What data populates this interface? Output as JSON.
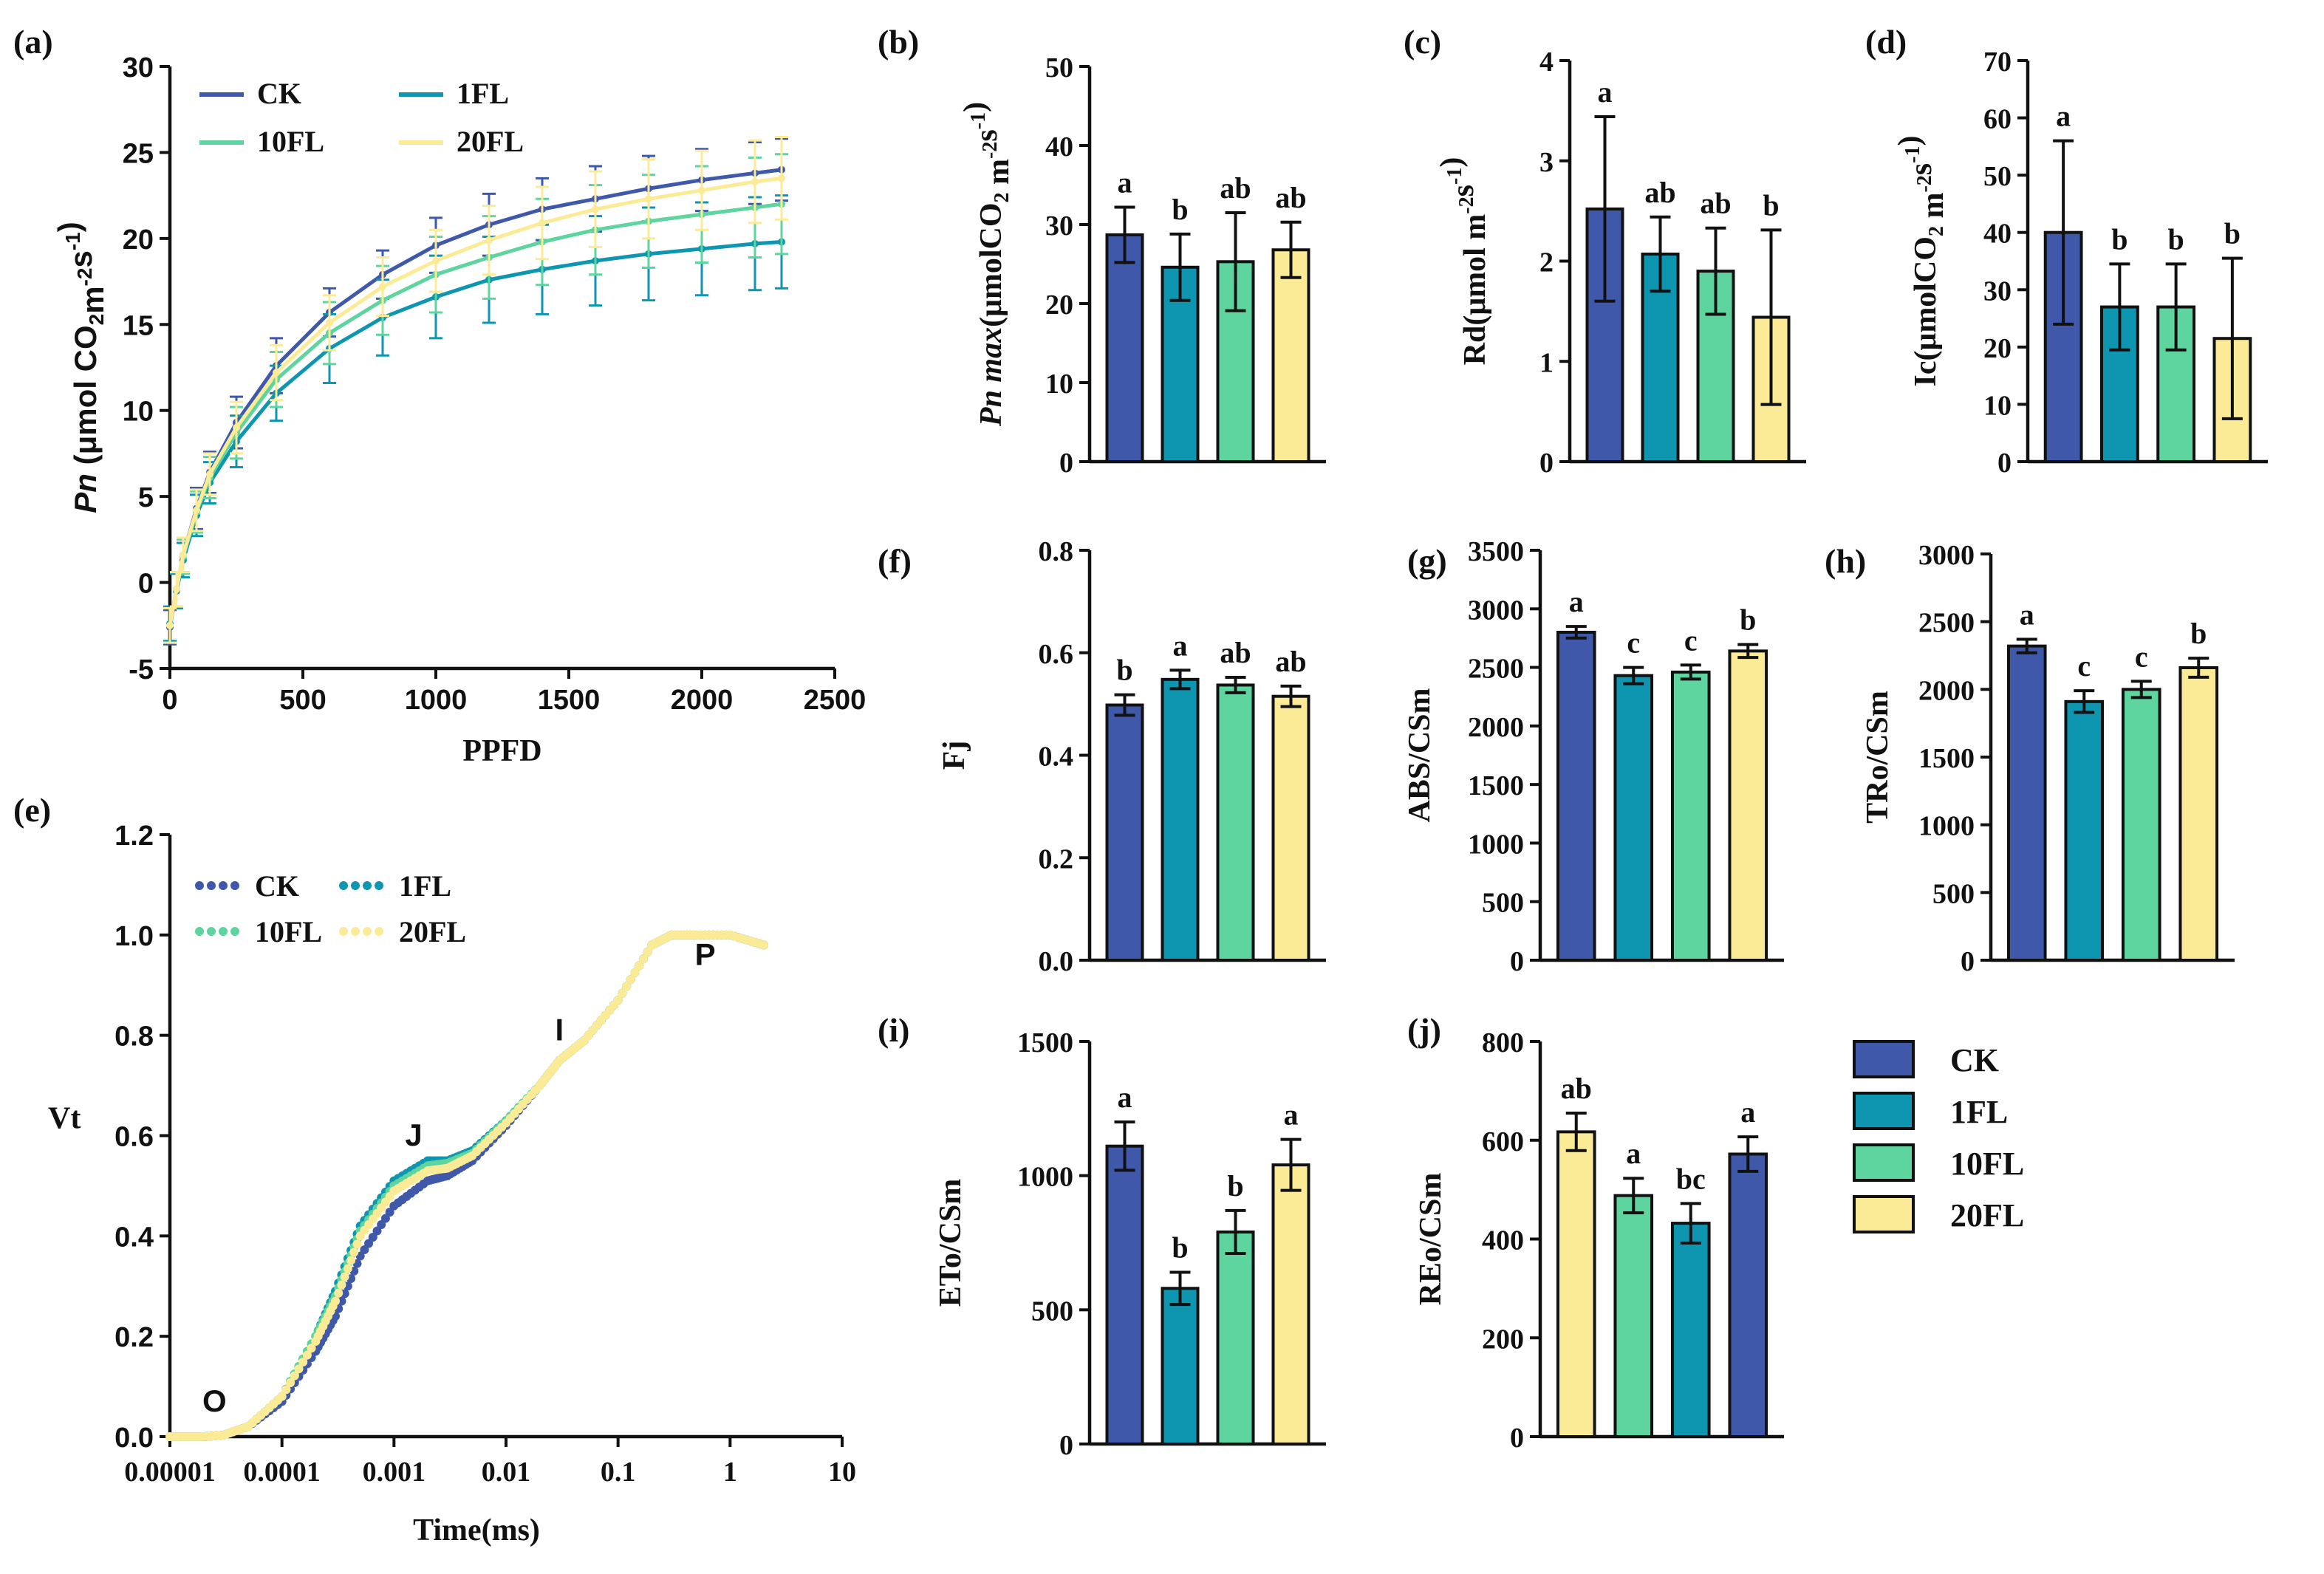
{
  "colors": {
    "CK": "#3F58AA",
    "1FL": "#0E96B0",
    "10FL": "#5ED49E",
    "20FL": "#FCEB96",
    "axis": "#111111"
  },
  "legend": {
    "entries": [
      "CK",
      "1FL",
      "10FL",
      "20FL"
    ]
  },
  "chart_data": [
    {
      "id": "a",
      "panel_label": "(a)",
      "type": "line",
      "xlabel": "PPFD",
      "ylabel_html": "Pn (μmol CO₂m⁻²s⁻¹)",
      "ylabel_parts": [
        "Pn",
        " (μmol CO",
        "2",
        "m",
        "-2",
        "s",
        "-1",
        ")"
      ],
      "xlim": [
        0,
        2500
      ],
      "ylim": [
        -5,
        30
      ],
      "xticks": [
        0,
        500,
        1000,
        1500,
        2000,
        2500
      ],
      "yticks": [
        -5,
        0,
        5,
        10,
        15,
        20,
        25,
        30
      ],
      "legend_placement": "top-left",
      "x": [
        0,
        25,
        50,
        100,
        150,
        250,
        400,
        600,
        800,
        1000,
        1200,
        1400,
        1600,
        1800,
        2000,
        2200,
        2300
      ],
      "series": [
        {
          "name": "CK",
          "values": [
            -2.6,
            -0.4,
            1.6,
            4.3,
            6.4,
            9.3,
            12.6,
            15.7,
            17.9,
            19.6,
            20.8,
            21.7,
            22.3,
            22.9,
            23.4,
            23.8,
            24.0
          ],
          "error": [
            1.0,
            1.0,
            1.0,
            1.2,
            1.2,
            1.5,
            1.6,
            1.4,
            1.4,
            1.6,
            1.8,
            1.8,
            1.9,
            1.9,
            1.8,
            1.8,
            1.8
          ]
        },
        {
          "name": "1FL",
          "values": [
            -2.4,
            -0.5,
            1.3,
            3.9,
            5.8,
            8.2,
            11.0,
            13.6,
            15.4,
            16.6,
            17.6,
            18.2,
            18.7,
            19.1,
            19.4,
            19.7,
            19.8
          ],
          "error": [
            1.0,
            1.0,
            1.0,
            1.2,
            1.2,
            1.5,
            1.6,
            2.0,
            2.2,
            2.4,
            2.5,
            2.6,
            2.6,
            2.7,
            2.7,
            2.7,
            2.7
          ]
        },
        {
          "name": "10FL",
          "values": [
            -2.5,
            -0.4,
            1.5,
            4.1,
            6.1,
            8.7,
            11.8,
            14.5,
            16.4,
            17.9,
            18.9,
            19.8,
            20.5,
            21.0,
            21.4,
            21.8,
            22.0
          ],
          "error": [
            1.0,
            1.0,
            1.0,
            1.2,
            1.2,
            1.5,
            1.6,
            1.8,
            2.0,
            2.2,
            2.4,
            2.5,
            2.6,
            2.7,
            2.8,
            2.9,
            2.9
          ]
        },
        {
          "name": "20FL",
          "values": [
            -2.5,
            -0.4,
            1.6,
            4.2,
            6.3,
            9.0,
            12.2,
            15.1,
            17.2,
            18.7,
            19.9,
            20.9,
            21.7,
            22.3,
            22.8,
            23.3,
            23.5
          ],
          "error": [
            1.0,
            1.0,
            1.0,
            1.2,
            1.2,
            1.5,
            1.6,
            1.6,
            1.7,
            1.8,
            2.0,
            2.1,
            2.2,
            2.3,
            2.3,
            2.4,
            2.4
          ]
        }
      ]
    },
    {
      "id": "b",
      "panel_label": "(b)",
      "type": "bar",
      "ylabel_parts": [
        "Pn max",
        "(μmolCO",
        "2",
        " m",
        "-2",
        "s",
        "-1",
        ")"
      ],
      "ylim": [
        0,
        50
      ],
      "yticks": [
        0,
        10,
        20,
        30,
        40,
        50
      ],
      "categories": [
        "CK",
        "1FL",
        "10FL",
        "20FL"
      ],
      "values": [
        28.7,
        24.6,
        25.3,
        26.8
      ],
      "errors": [
        3.5,
        4.2,
        6.2,
        3.5
      ],
      "letters": [
        "a",
        "b",
        "ab",
        "ab"
      ]
    },
    {
      "id": "c",
      "panel_label": "(c)",
      "type": "bar",
      "ylabel_parts": [
        "Rd(μmol m",
        "-2",
        "s",
        "-1",
        ")"
      ],
      "ylim": [
        0,
        4
      ],
      "yticks": [
        0,
        1,
        2,
        3,
        4
      ],
      "categories": [
        "CK",
        "1FL",
        "10FL",
        "20FL"
      ],
      "values": [
        2.52,
        2.07,
        1.9,
        1.44
      ],
      "errors": [
        0.92,
        0.37,
        0.43,
        0.87
      ],
      "letters": [
        "a",
        "ab",
        "ab",
        "b"
      ]
    },
    {
      "id": "d",
      "panel_label": "(d)",
      "type": "bar",
      "ylabel_parts": [
        "Ic(μmolCO",
        "2",
        " m",
        "-2",
        "s",
        "-1",
        ")"
      ],
      "ylim": [
        0,
        70
      ],
      "yticks": [
        0,
        10,
        20,
        30,
        40,
        50,
        60,
        70
      ],
      "categories": [
        "CK",
        "1FL",
        "10FL",
        "20FL"
      ],
      "values": [
        40.0,
        27.0,
        27.0,
        21.5
      ],
      "errors": [
        16.0,
        7.5,
        7.5,
        14.0
      ],
      "letters": [
        "a",
        "b",
        "b",
        "b"
      ]
    },
    {
      "id": "e",
      "panel_label": "(e)",
      "type": "scatter",
      "xscale": "log",
      "xlabel": "Time(ms)",
      "ylabel": "Vt",
      "xlim": [
        1e-05,
        10
      ],
      "ylim": [
        0,
        1.2
      ],
      "xtick_labels": [
        "0.00001",
        "0.0001",
        "0.001",
        "0.01",
        "0.1",
        "1",
        "10"
      ],
      "yticks": [
        0.0,
        0.2,
        0.4,
        0.6,
        0.8,
        1.0,
        1.2
      ],
      "legend_placement": "top-left",
      "annotations": [
        {
          "text": "O",
          "x": 2.5e-05,
          "y": 0.05
        },
        {
          "text": "J",
          "x": 0.0015,
          "y": 0.58
        },
        {
          "text": "I",
          "x": 0.03,
          "y": 0.79
        },
        {
          "text": "P",
          "x": 0.6,
          "y": 0.94
        }
      ],
      "x": [
        1e-05,
        2e-05,
        3e-05,
        5e-05,
        0.0001,
        0.0002,
        0.0003,
        0.0005,
        0.001,
        0.002,
        0.003,
        0.005,
        0.01,
        0.02,
        0.03,
        0.05,
        0.1,
        0.2,
        0.3,
        0.5,
        1,
        2
      ],
      "series": [
        {
          "name": "CK",
          "values": [
            0.0,
            0.0,
            0.003,
            0.02,
            0.07,
            0.17,
            0.24,
            0.36,
            0.46,
            0.51,
            0.52,
            0.55,
            0.62,
            0.7,
            0.75,
            0.79,
            0.87,
            0.98,
            1.0,
            1.0,
            1.0,
            0.98
          ]
        },
        {
          "name": "1FL",
          "values": [
            0.0,
            0.0,
            0.003,
            0.02,
            0.08,
            0.2,
            0.29,
            0.42,
            0.51,
            0.55,
            0.55,
            0.57,
            0.63,
            0.7,
            0.75,
            0.79,
            0.87,
            0.98,
            1.0,
            1.0,
            1.0,
            0.98
          ]
        },
        {
          "name": "10FL",
          "values": [
            0.0,
            0.0,
            0.003,
            0.02,
            0.08,
            0.2,
            0.28,
            0.41,
            0.5,
            0.54,
            0.545,
            0.565,
            0.63,
            0.7,
            0.75,
            0.79,
            0.87,
            0.98,
            1.0,
            1.0,
            1.0,
            0.98
          ]
        },
        {
          "name": "20FL",
          "values": [
            0.0,
            0.0,
            0.003,
            0.02,
            0.08,
            0.19,
            0.27,
            0.4,
            0.49,
            0.53,
            0.535,
            0.56,
            0.625,
            0.7,
            0.75,
            0.79,
            0.87,
            0.98,
            1.0,
            1.0,
            1.0,
            0.98
          ]
        }
      ]
    },
    {
      "id": "f",
      "panel_label": "(f)",
      "type": "bar",
      "ylabel_parts": [
        "Fj"
      ],
      "ylim": [
        0,
        0.8
      ],
      "yticks": [
        0.0,
        0.2,
        0.4,
        0.6,
        0.8
      ],
      "ytick_labels": [
        "0.0",
        "0.2",
        "0.4",
        "0.6",
        "0.8"
      ],
      "categories": [
        "CK",
        "1FL",
        "10FL",
        "20FL"
      ],
      "values": [
        0.498,
        0.548,
        0.537,
        0.515
      ],
      "errors": [
        0.02,
        0.018,
        0.015,
        0.02
      ],
      "letters": [
        "b",
        "a",
        "ab",
        "ab"
      ]
    },
    {
      "id": "g",
      "panel_label": "(g)",
      "type": "bar",
      "ylabel_parts": [
        "ABS/CSm"
      ],
      "ylim": [
        0,
        3500
      ],
      "yticks": [
        0,
        500,
        1000,
        1500,
        2000,
        2500,
        3000,
        3500
      ],
      "categories": [
        "CK",
        "1FL",
        "10FL",
        "20FL"
      ],
      "values": [
        2800,
        2430,
        2460,
        2640
      ],
      "errors": [
        50,
        70,
        60,
        55
      ],
      "letters": [
        "a",
        "c",
        "c",
        "b"
      ]
    },
    {
      "id": "h",
      "panel_label": "(h)",
      "type": "bar",
      "ylabel_parts": [
        "TRo/CSm"
      ],
      "ylim": [
        0,
        3000
      ],
      "yticks": [
        0,
        500,
        1000,
        1500,
        2000,
        2500,
        3000
      ],
      "categories": [
        "CK",
        "1FL",
        "10FL",
        "20FL"
      ],
      "values": [
        2320,
        1910,
        2000,
        2160
      ],
      "errors": [
        50,
        80,
        60,
        70
      ],
      "letters": [
        "a",
        "c",
        "c",
        "b"
      ]
    },
    {
      "id": "i",
      "panel_label": "(i)",
      "type": "bar",
      "ylabel_parts": [
        "ETo/CSm"
      ],
      "ylim": [
        0,
        1500
      ],
      "yticks": [
        0,
        500,
        1000,
        1500
      ],
      "categories": [
        "CK",
        "1FL",
        "10FL",
        "20FL"
      ],
      "values": [
        1110,
        580,
        790,
        1040
      ],
      "errors": [
        90,
        60,
        80,
        95
      ],
      "letters": [
        "a",
        "b",
        "b",
        "a"
      ]
    },
    {
      "id": "j",
      "panel_label": "(j)",
      "type": "bar",
      "ylabel_parts": [
        "REo/CSm"
      ],
      "ylim": [
        0,
        800
      ],
      "yticks": [
        0,
        200,
        400,
        600,
        800
      ],
      "categories": [
        "20FL",
        "10FL",
        "1FL",
        "CK"
      ],
      "values": [
        617,
        488,
        432,
        572
      ],
      "errors": [
        38,
        35,
        40,
        35
      ],
      "letters": [
        "ab",
        "a",
        "bc",
        "a"
      ]
    }
  ]
}
